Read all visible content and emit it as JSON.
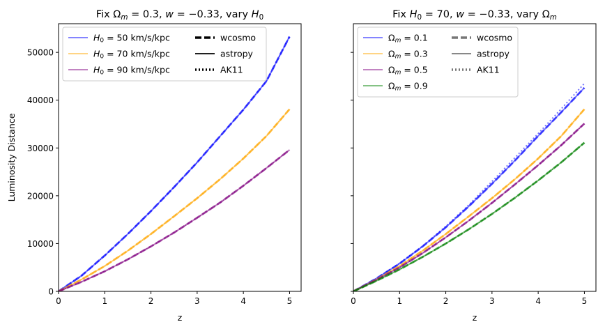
{
  "chart_data": [
    {
      "type": "line",
      "title_parts": [
        "Fix ",
        "Ω",
        "m",
        " = 0.3, ",
        "w",
        " = −0.33, vary ",
        "H",
        "0"
      ],
      "xlabel": "z",
      "ylabel": "Luminosity Distance",
      "xlim": [
        0,
        5.25
      ],
      "ylim": [
        0,
        56000
      ],
      "xticks": [
        "0",
        "1",
        "2",
        "3",
        "4",
        "5"
      ],
      "yticks": [
        "0",
        "10000",
        "20000",
        "30000",
        "40000",
        "50000"
      ],
      "x": [
        0,
        0.5,
        1,
        1.5,
        2,
        2.5,
        3,
        3.5,
        4,
        4.5,
        5
      ],
      "series": [
        {
          "name": "H0 = 50 km/s/kpc",
          "label_parts": [
            "H",
            "0",
            " = 50 km/s/kpc"
          ],
          "color": "#0000ff",
          "values": [
            0,
            3300,
            7500,
            12000,
            16800,
            21800,
            27000,
            32500,
            38000,
            44000,
            53300
          ]
        },
        {
          "name": "H0 = 70 km/s/kpc",
          "label_parts": [
            "H",
            "0",
            " = 70 km/s/kpc"
          ],
          "color": "#ffa500",
          "values": [
            0,
            2500,
            5300,
            8500,
            12000,
            15700,
            19500,
            23500,
            27800,
            32500,
            38100
          ]
        },
        {
          "name": "H0 = 90 km/s/kpc",
          "label_parts": [
            "H",
            "0",
            " = 90 km/s/kpc"
          ],
          "color": "#800080",
          "values": [
            0,
            2000,
            4200,
            6700,
            9400,
            12300,
            15400,
            18600,
            22100,
            25800,
            29600
          ]
        }
      ],
      "style_legend": [
        "wcosmo",
        "astropy",
        "AK11"
      ],
      "legend_loc": "upper-left",
      "show_ylabel": true
    },
    {
      "type": "line",
      "title_parts": [
        "Fix ",
        "H",
        "0",
        " = 70, ",
        "w",
        " = −0.33, vary ",
        "Ω",
        "m"
      ],
      "xlabel": "z",
      "ylabel": "",
      "xlim": [
        0,
        5.25
      ],
      "ylim": [
        0,
        56000
      ],
      "xticks": [
        "0",
        "1",
        "2",
        "3",
        "4",
        "5"
      ],
      "yticks": [
        "0",
        "10000",
        "20000",
        "30000",
        "40000",
        "50000"
      ],
      "x": [
        0,
        0.5,
        1,
        1.5,
        2,
        2.5,
        3,
        3.5,
        4,
        4.5,
        5
      ],
      "series": [
        {
          "name": "Ωm = 0.1",
          "label_parts": [
            "Ω",
            "m",
            " = 0.1"
          ],
          "color": "#0000ff",
          "values": [
            0,
            2700,
            5800,
            9400,
            13400,
            17800,
            22500,
            27400,
            32500,
            37500,
            42600
          ],
          "ak11_values": [
            0,
            2700,
            5900,
            9500,
            13600,
            18100,
            23000,
            28000,
            33000,
            38200,
            43500
          ]
        },
        {
          "name": "Ωm = 0.3",
          "label_parts": [
            "Ω",
            "m",
            " = 0.3"
          ],
          "color": "#ffa500",
          "values": [
            0,
            2500,
            5300,
            8500,
            12000,
            15700,
            19500,
            23500,
            27800,
            32500,
            38100
          ]
        },
        {
          "name": "Ωm = 0.5",
          "label_parts": [
            "Ω",
            "m",
            " = 0.5"
          ],
          "color": "#800080",
          "values": [
            0,
            2400,
            5000,
            8000,
            11300,
            14800,
            18500,
            22400,
            26400,
            30600,
            35100
          ]
        },
        {
          "name": "Ωm = 0.9",
          "label_parts": [
            "Ω",
            "m",
            " = 0.9"
          ],
          "color": "#008000",
          "values": [
            0,
            2200,
            4600,
            7200,
            10000,
            13000,
            16200,
            19600,
            23200,
            27000,
            31100
          ]
        }
      ],
      "style_legend": [
        "wcosmo",
        "astropy",
        "AK11"
      ],
      "legend_loc": "upper-left",
      "show_ylabel": false
    }
  ]
}
